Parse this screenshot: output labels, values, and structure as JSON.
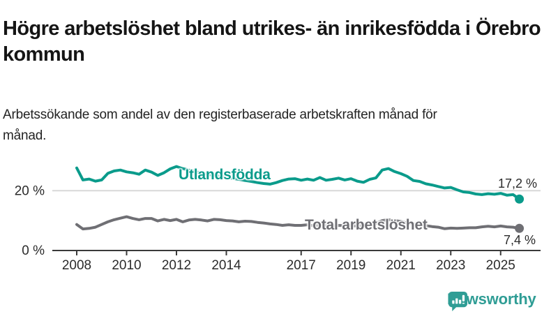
{
  "header": {
    "title": "Högre arbetslöshet bland utrikes- än inrikesfödda i Örebro kommun",
    "subtitle": "Arbetssökande som andel av den registerbaserade arbetskraften månad för månad."
  },
  "chart_data": {
    "type": "line",
    "title": "Högre arbetslöshet bland utrikes- än inrikesfödda i Örebro kommun",
    "subtitle": "Arbetssökande som andel av den registerbaserade arbetskraften månad för månad.",
    "unit": "percent of registered labour force",
    "x_unit": "year (quarterly samples)",
    "x": [
      2008.0,
      2008.25,
      2008.5,
      2008.75,
      2009.0,
      2009.25,
      2009.5,
      2009.75,
      2010.0,
      2010.25,
      2010.5,
      2010.75,
      2011.0,
      2011.25,
      2011.5,
      2011.75,
      2012.0,
      2012.25,
      2012.5,
      2012.75,
      2013.0,
      2013.25,
      2013.5,
      2013.75,
      2014.0,
      2014.25,
      2014.5,
      2014.75,
      2015.0,
      2015.25,
      2015.5,
      2015.75,
      2016.0,
      2016.25,
      2016.5,
      2016.75,
      2017.0,
      2017.25,
      2017.5,
      2017.75,
      2018.0,
      2018.25,
      2018.5,
      2018.75,
      2019.0,
      2019.25,
      2019.5,
      2019.75,
      2020.0,
      2020.25,
      2020.5,
      2020.75,
      2021.0,
      2021.25,
      2021.5,
      2021.75,
      2022.0,
      2022.25,
      2022.5,
      2022.75,
      2023.0,
      2023.25,
      2023.5,
      2023.75,
      2024.0,
      2024.25,
      2024.5,
      2024.75,
      2025.0,
      2025.25,
      2025.5,
      2025.75
    ],
    "series": [
      {
        "name": "Utlandsfödda",
        "color": "#0a9b8b",
        "end_value_label": "17,2 %",
        "end_value": 17.2,
        "values": [
          27.6,
          23.6,
          23.9,
          23.2,
          23.6,
          25.8,
          26.6,
          26.9,
          26.3,
          26.0,
          25.5,
          26.9,
          26.2,
          25.1,
          26.0,
          27.3,
          28.1,
          27.4,
          26.9,
          26.4,
          25.9,
          25.5,
          25.1,
          24.8,
          24.4,
          24.1,
          23.8,
          23.4,
          23.1,
          22.7,
          22.4,
          22.2,
          22.7,
          23.4,
          23.9,
          24.0,
          23.5,
          23.9,
          23.5,
          24.4,
          23.5,
          23.8,
          24.2,
          23.6,
          24.0,
          23.2,
          22.8,
          23.8,
          24.3,
          26.9,
          27.4,
          26.4,
          25.7,
          24.8,
          23.4,
          23.1,
          22.3,
          21.9,
          21.4,
          20.9,
          21.1,
          20.3,
          19.6,
          19.4,
          18.9,
          18.7,
          19.0,
          18.8,
          19.1,
          18.5,
          18.7,
          17.2
        ]
      },
      {
        "name": "Total arbetslöshet",
        "color": "#6f6f74",
        "end_value_label": "7,4 %",
        "end_value": 7.4,
        "values": [
          8.7,
          7.2,
          7.4,
          7.8,
          8.7,
          9.6,
          10.3,
          10.8,
          11.3,
          10.7,
          10.3,
          10.7,
          10.7,
          9.9,
          10.4,
          10.0,
          10.4,
          9.6,
          10.2,
          10.4,
          10.2,
          9.9,
          10.4,
          10.3,
          10.0,
          9.9,
          9.6,
          9.8,
          9.7,
          9.4,
          9.2,
          8.9,
          8.7,
          8.4,
          8.6,
          8.4,
          8.4,
          8.6,
          8.3,
          8.5,
          8.3,
          8.2,
          8.4,
          8.3,
          8.3,
          8.2,
          8.4,
          8.7,
          9.0,
          10.0,
          10.3,
          10.0,
          9.7,
          9.2,
          8.9,
          8.6,
          8.3,
          8.0,
          7.8,
          7.3,
          7.5,
          7.4,
          7.5,
          7.6,
          7.6,
          7.9,
          8.1,
          7.9,
          8.2,
          7.9,
          7.8,
          7.4
        ]
      }
    ],
    "x_ticks": [
      {
        "v": 2008,
        "label": "2008"
      },
      {
        "v": 2010,
        "label": "2010"
      },
      {
        "v": 2012,
        "label": "2012"
      },
      {
        "v": 2014,
        "label": "2014"
      },
      {
        "v": 2017,
        "label": "2017"
      },
      {
        "v": 2019,
        "label": "2019"
      },
      {
        "v": 2021,
        "label": "2021"
      },
      {
        "v": 2023,
        "label": "2023"
      },
      {
        "v": 2025,
        "label": "2025"
      }
    ],
    "y_ticks": [
      {
        "v": 0,
        "label": "0 %"
      },
      {
        "v": 20,
        "label": "20 %"
      }
    ],
    "ylim": [
      0,
      34
    ],
    "xlim": [
      2007.0,
      2026.6
    ],
    "grid": "horizontal gridline at 20 % only",
    "legend": "direct labels on lines",
    "axis_color": "#3a3a3a",
    "grid_color": "#d8d8d8",
    "tick_label_color": "#2b2b2b"
  },
  "footer": {
    "brand": "Newsworthy",
    "brand_color": "#2f9d95",
    "logo_icon": "bar-chart-speech-bubble-icon"
  }
}
